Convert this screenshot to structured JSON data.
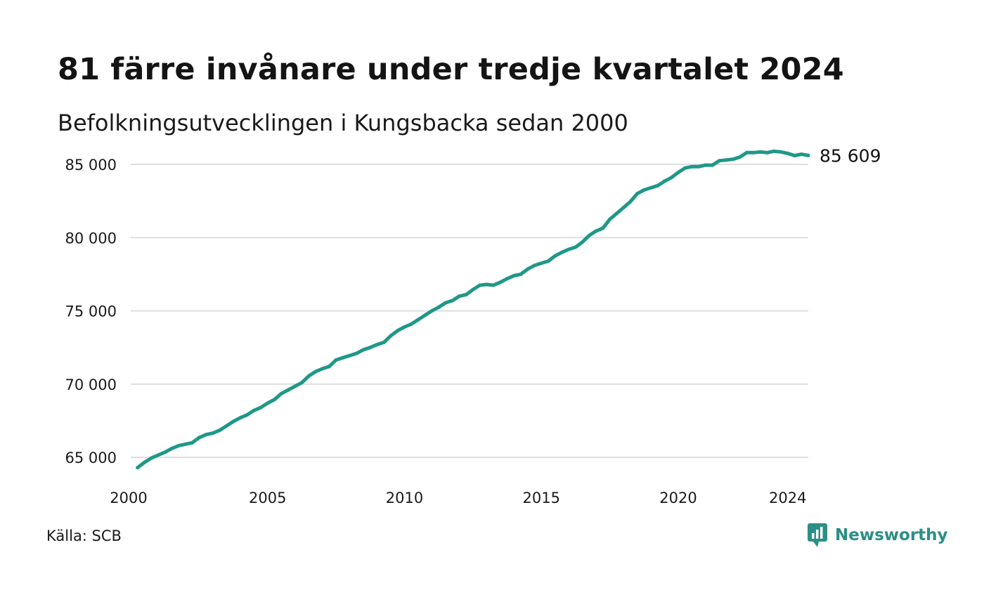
{
  "header": {
    "title": "81 färre invånare under tredje kvartalet 2024",
    "subtitle": "Befolkningsutvecklingen i Kungsbacka sedan 2000"
  },
  "footer": {
    "source": "Källa: SCB",
    "brand": "Newsworthy",
    "brand_icon": "bar-chart-chat-icon"
  },
  "colors": {
    "line": "#1f9888",
    "grid": "#dedede",
    "text": "#1a1a1a",
    "brand": "#2b8f86"
  },
  "chart_data": {
    "type": "line",
    "title": "81 färre invånare under tredje kvartalet 2024",
    "subtitle": "Befolkningsutvecklingen i Kungsbacka sedan 2000",
    "xlim": [
      2000,
      2024.75
    ],
    "ylim": [
      64000,
      86200
    ],
    "grid": true,
    "x_ticks": [
      2000,
      2005,
      2010,
      2015,
      2020,
      2024
    ],
    "x_tick_labels": [
      "2000",
      "2005",
      "2010",
      "2015",
      "2020",
      "2024"
    ],
    "y_ticks": [
      65000,
      70000,
      75000,
      80000,
      85000
    ],
    "y_tick_labels": [
      "65 000",
      "70 000",
      "75 000",
      "80 000",
      "85 000"
    ],
    "end_label": "85 609",
    "x": [
      2000.25,
      2000.5,
      2000.75,
      2001.0,
      2001.25,
      2001.5,
      2001.75,
      2002.0,
      2002.25,
      2002.5,
      2002.75,
      2003.0,
      2003.25,
      2003.5,
      2003.75,
      2004.0,
      2004.25,
      2004.5,
      2004.75,
      2005.0,
      2005.25,
      2005.5,
      2005.75,
      2006.0,
      2006.25,
      2006.5,
      2006.75,
      2007.0,
      2007.25,
      2007.5,
      2007.75,
      2008.0,
      2008.25,
      2008.5,
      2008.75,
      2009.0,
      2009.25,
      2009.5,
      2009.75,
      2010.0,
      2010.25,
      2010.5,
      2010.75,
      2011.0,
      2011.25,
      2011.5,
      2011.75,
      2012.0,
      2012.25,
      2012.5,
      2012.75,
      2013.0,
      2013.25,
      2013.5,
      2013.75,
      2014.0,
      2014.25,
      2014.5,
      2014.75,
      2015.0,
      2015.25,
      2015.5,
      2015.75,
      2016.0,
      2016.25,
      2016.5,
      2016.75,
      2017.0,
      2017.25,
      2017.5,
      2017.75,
      2018.0,
      2018.25,
      2018.5,
      2018.75,
      2019.0,
      2019.25,
      2019.5,
      2019.75,
      2020.0,
      2020.25,
      2020.5,
      2020.75,
      2021.0,
      2021.25,
      2021.5,
      2021.75,
      2022.0,
      2022.25,
      2022.5,
      2022.75,
      2023.0,
      2023.25,
      2023.5,
      2023.75,
      2024.0,
      2024.25,
      2024.5,
      2024.75
    ],
    "series": [
      {
        "values": [
          64300,
          64650,
          64950,
          65150,
          65350,
          65600,
          65800,
          65900,
          66000,
          66350,
          66550,
          66650,
          66850,
          67150,
          67450,
          67700,
          67900,
          68200,
          68400,
          68700,
          68950,
          69350,
          69600,
          69850,
          70100,
          70550,
          70850,
          71050,
          71200,
          71650,
          71800,
          71950,
          72100,
          72350,
          72500,
          72700,
          72850,
          73300,
          73650,
          73900,
          74100,
          74400,
          74700,
          75000,
          75250,
          75550,
          75700,
          76000,
          76100,
          76450,
          76750,
          76800,
          76750,
          76950,
          77200,
          77400,
          77500,
          77850,
          78100,
          78250,
          78400,
          78750,
          79000,
          79200,
          79350,
          79700,
          80150,
          80450,
          80650,
          81250,
          81650,
          82050,
          82450,
          83000,
          83250,
          83400,
          83550,
          83850,
          84100,
          84450,
          84750,
          84850,
          84850,
          84950,
          84950,
          85250,
          85300,
          85350,
          85500,
          85800,
          85800,
          85850,
          85800,
          85900,
          85850,
          85750,
          85600,
          85690,
          85609
        ]
      }
    ]
  }
}
